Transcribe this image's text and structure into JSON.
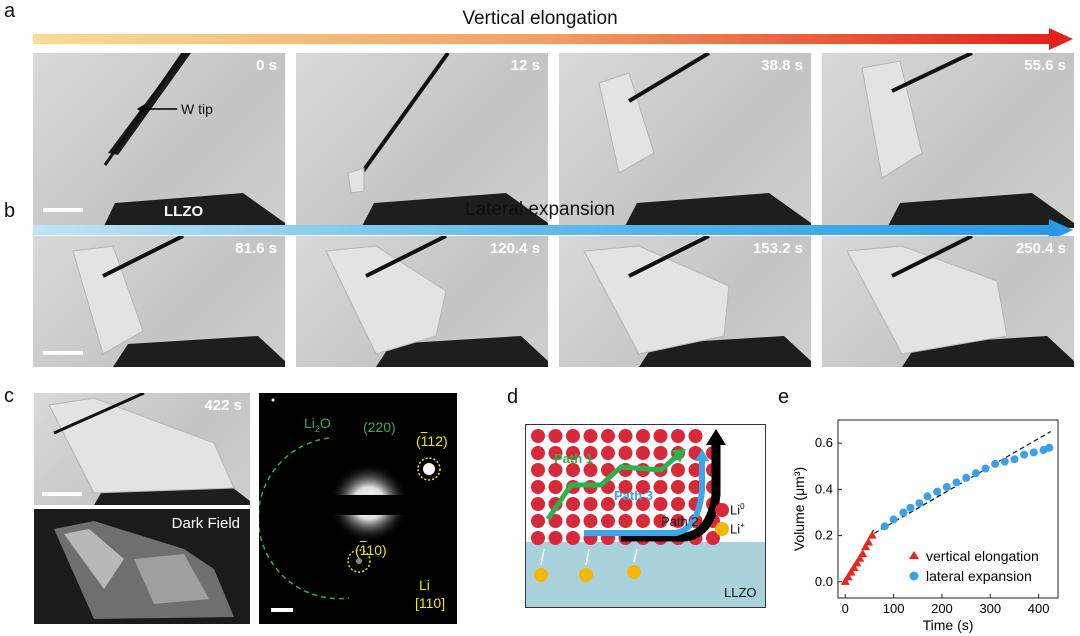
{
  "panels": {
    "a": {
      "letter": "a",
      "title": "Vertical elongation",
      "frames": [
        "0 s",
        "12 s",
        "38.8 s",
        "55.6 s"
      ],
      "annotations": {
        "tip": "W tip",
        "substrate": "LLZO"
      }
    },
    "b": {
      "letter": "b",
      "title": "Lateral expansion",
      "frames": [
        "81.6 s",
        "120.4 s",
        "153.2 s",
        "250.4 s"
      ]
    },
    "c": {
      "letter": "c",
      "frame": "422 s",
      "dark_field": "Dark Field",
      "diffraction": {
        "phase": "Li",
        "phase_sub": "2",
        "phase_suffix": "O",
        "ring": "(220)",
        "spot1": "(̅1̄1 2)",
        "spot1_plain": "(112)",
        "spot2_plain": "(110)",
        "zone_metal": "Li",
        "zone_axis": "[110]"
      }
    },
    "d": {
      "letter": "d",
      "path1": "Path 1",
      "path2": "Path 2",
      "path3": "Path 3",
      "legend_li0": "Li",
      "legend_li0_sup": "0",
      "legend_liplus": "Li",
      "legend_liplus_sup": "+",
      "substrate": "LLZO",
      "colors": {
        "li0": "#d8293a",
        "liplus": "#f5b800",
        "substrate": "#a9d2dc",
        "path1": "#2bb24c",
        "path3": "#3ea6e6",
        "path2": "#000000"
      }
    },
    "e": {
      "letter": "e"
    }
  },
  "chart_data": {
    "type": "scatter",
    "xlabel": "Time (s)",
    "ylabel": "Volume (μm³)",
    "xlim": [
      -15,
      440
    ],
    "ylim": [
      -0.07,
      0.7
    ],
    "xticks": [
      0,
      100,
      200,
      300,
      400
    ],
    "yticks": [
      0.0,
      0.2,
      0.4,
      0.6
    ],
    "legend_position": "bottom-right",
    "series": [
      {
        "name": "vertical elongation",
        "marker": "triangle",
        "color": "#e8261f",
        "x": [
          0,
          6,
          12,
          18,
          24,
          30,
          36,
          42,
          48,
          55.6
        ],
        "y": [
          0.0,
          0.02,
          0.04,
          0.06,
          0.08,
          0.1,
          0.12,
          0.15,
          0.17,
          0.2
        ]
      },
      {
        "name": "lateral expansion",
        "marker": "circle",
        "color": "#3aa0ea",
        "x": [
          81.6,
          100,
          120.4,
          135,
          153.2,
          170,
          190,
          210,
          230,
          250.4,
          270,
          290,
          310,
          330,
          350,
          370,
          390,
          410,
          422
        ],
        "y": [
          0.24,
          0.27,
          0.3,
          0.32,
          0.34,
          0.37,
          0.39,
          0.41,
          0.43,
          0.45,
          0.47,
          0.49,
          0.51,
          0.52,
          0.53,
          0.55,
          0.56,
          0.57,
          0.58
        ]
      }
    ],
    "fit_lines": [
      {
        "x": [
          0,
          60
        ],
        "y": [
          -0.01,
          0.23
        ]
      },
      {
        "x": [
          60,
          425
        ],
        "y": [
          0.21,
          0.65
        ]
      }
    ]
  }
}
